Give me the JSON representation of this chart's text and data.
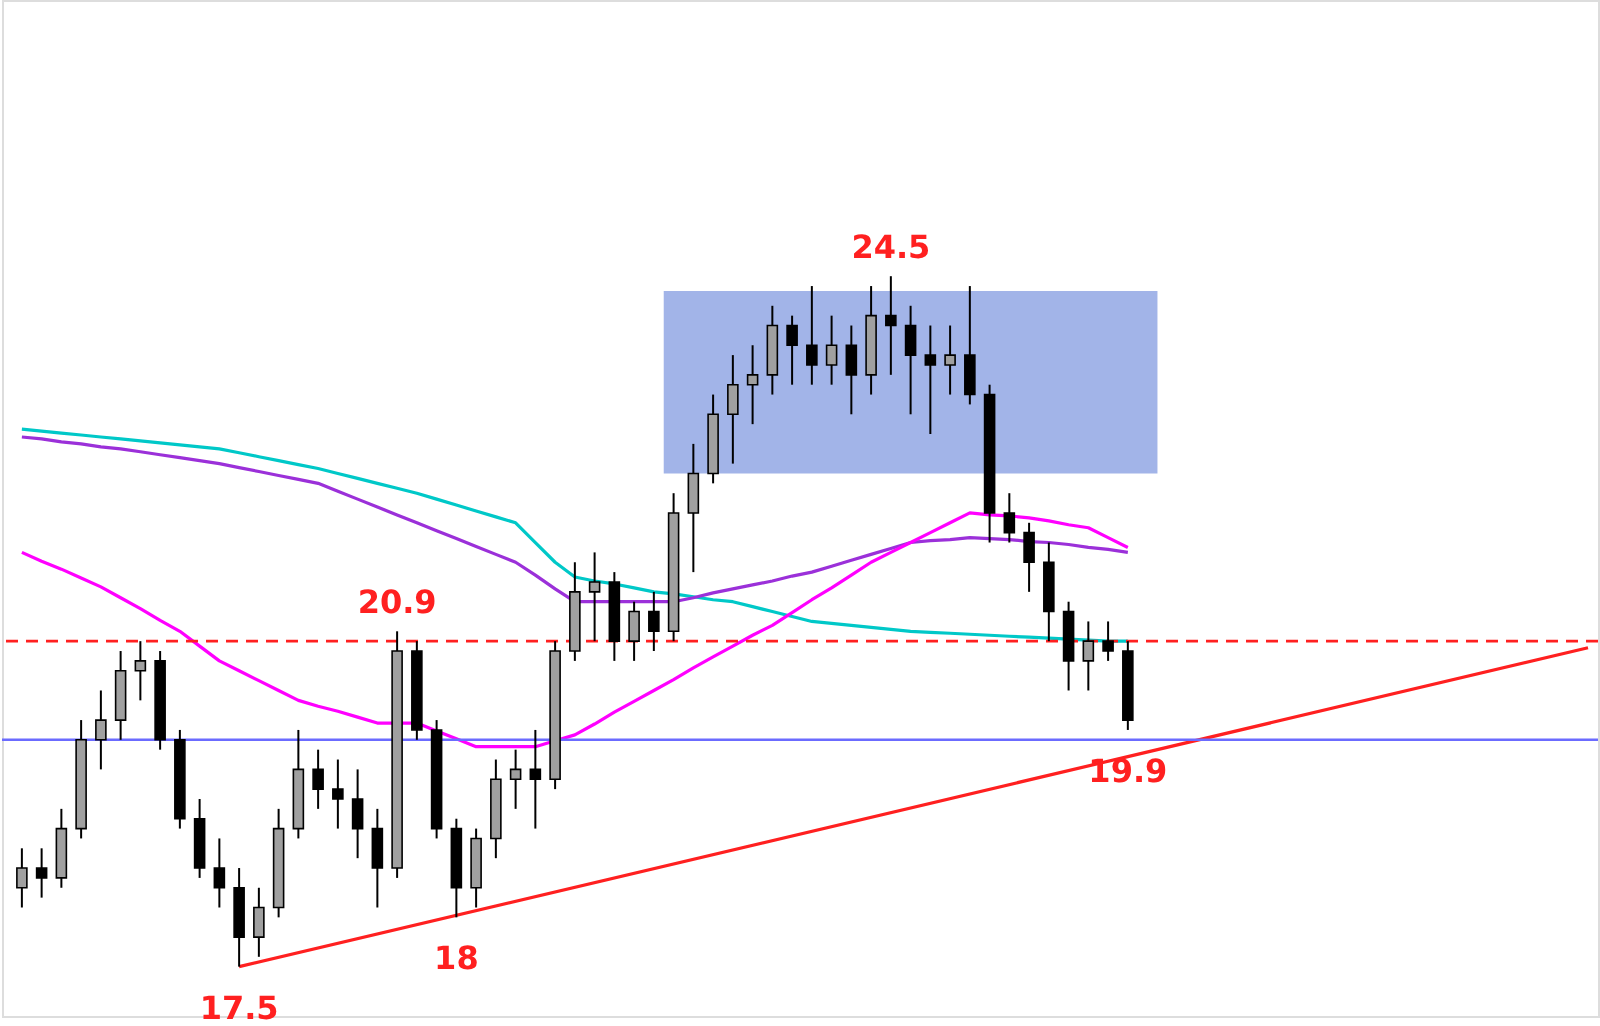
{
  "chart_data": {
    "type": "candlestick",
    "ylim": [
      17.0,
      27.3
    ],
    "categories": [
      null,
      null,
      null,
      null,
      null,
      null,
      null,
      null,
      null,
      null,
      null,
      null,
      null,
      null,
      null,
      null,
      null,
      null,
      null,
      null,
      null,
      null,
      null,
      null,
      null,
      null,
      null,
      null,
      null,
      null,
      null,
      null,
      null,
      null,
      null,
      null,
      null,
      null,
      null,
      null,
      null,
      null,
      null,
      null,
      null,
      null,
      null,
      null,
      null,
      null,
      null,
      null,
      null,
      null,
      null,
      null,
      null
    ],
    "series": [
      {
        "color": "#000000",
        "ohlc": [
          [
            18.3,
            18.7,
            18.1,
            18.5
          ],
          [
            18.5,
            18.7,
            18.2,
            18.4
          ],
          [
            18.4,
            19.1,
            18.3,
            18.9
          ],
          [
            18.9,
            20.0,
            18.8,
            19.8
          ],
          [
            19.8,
            20.3,
            19.5,
            20.0
          ],
          [
            20.0,
            20.7,
            19.8,
            20.5
          ],
          [
            20.5,
            20.8,
            20.2,
            20.6
          ],
          [
            20.6,
            20.7,
            19.7,
            19.8
          ],
          [
            19.8,
            19.9,
            18.9,
            19.0
          ],
          [
            19.0,
            19.2,
            18.4,
            18.5
          ],
          [
            18.5,
            18.8,
            18.1,
            18.3
          ],
          [
            18.3,
            18.5,
            17.5,
            17.8
          ],
          [
            17.8,
            18.3,
            17.6,
            18.1
          ],
          [
            18.1,
            19.1,
            18.0,
            18.9
          ],
          [
            18.9,
            19.9,
            18.8,
            19.5
          ],
          [
            19.5,
            19.7,
            19.1,
            19.3
          ],
          [
            19.3,
            19.6,
            18.9,
            19.2
          ],
          [
            19.2,
            19.5,
            18.6,
            18.9
          ],
          [
            18.9,
            19.1,
            18.1,
            18.5
          ],
          [
            18.5,
            20.9,
            18.4,
            20.7
          ],
          [
            20.7,
            20.8,
            19.8,
            19.9
          ],
          [
            19.9,
            20.0,
            18.8,
            18.9
          ],
          [
            18.9,
            19.0,
            18.0,
            18.3
          ],
          [
            18.3,
            18.9,
            18.1,
            18.8
          ],
          [
            18.8,
            19.6,
            18.6,
            19.4
          ],
          [
            19.4,
            19.7,
            19.1,
            19.5
          ],
          [
            19.5,
            19.9,
            18.9,
            19.4
          ],
          [
            19.4,
            20.8,
            19.3,
            20.7
          ],
          [
            20.7,
            21.6,
            20.6,
            21.3
          ],
          [
            21.3,
            21.7,
            20.8,
            21.4
          ],
          [
            21.4,
            21.5,
            20.6,
            20.8
          ],
          [
            20.8,
            21.2,
            20.6,
            21.1
          ],
          [
            21.1,
            21.3,
            20.7,
            20.9
          ],
          [
            20.9,
            22.3,
            20.8,
            22.1
          ],
          [
            22.1,
            22.8,
            21.5,
            22.5
          ],
          [
            22.5,
            23.3,
            22.4,
            23.1
          ],
          [
            23.1,
            23.7,
            22.6,
            23.4
          ],
          [
            23.4,
            23.8,
            23.0,
            23.5
          ],
          [
            23.5,
            24.2,
            23.3,
            24.0
          ],
          [
            24.0,
            24.1,
            23.4,
            23.8
          ],
          [
            23.8,
            24.4,
            23.4,
            23.6
          ],
          [
            23.6,
            24.1,
            23.4,
            23.8
          ],
          [
            23.8,
            24.0,
            23.1,
            23.5
          ],
          [
            23.5,
            24.4,
            23.3,
            24.1
          ],
          [
            24.1,
            24.5,
            23.5,
            24.0
          ],
          [
            24.0,
            24.2,
            23.1,
            23.7
          ],
          [
            23.7,
            24.0,
            22.9,
            23.6
          ],
          [
            23.6,
            24.0,
            23.3,
            23.7
          ],
          [
            23.7,
            24.4,
            23.2,
            23.3
          ],
          [
            23.3,
            23.4,
            21.8,
            22.1
          ],
          [
            22.1,
            22.3,
            21.8,
            21.9
          ],
          [
            21.9,
            22.0,
            21.3,
            21.6
          ],
          [
            21.6,
            21.8,
            20.8,
            21.1
          ],
          [
            21.1,
            21.2,
            20.3,
            20.6
          ],
          [
            20.6,
            21.0,
            20.3,
            20.8
          ],
          [
            20.8,
            21.0,
            20.6,
            20.7
          ],
          [
            20.7,
            20.8,
            19.9,
            20.0
          ]
        ]
      },
      {
        "type": "line",
        "color": "#00c8c8",
        "values": [
          22.95,
          22.93,
          22.91,
          22.89,
          22.87,
          22.85,
          22.83,
          22.81,
          22.79,
          22.77,
          22.75,
          22.71,
          22.67,
          22.63,
          22.59,
          22.55,
          22.5,
          22.45,
          22.4,
          22.35,
          22.3,
          22.24,
          22.18,
          22.12,
          22.06,
          22.0,
          21.8,
          21.6,
          21.45,
          21.41,
          21.38,
          21.34,
          21.3,
          21.28,
          21.25,
          21.22,
          21.2,
          21.15,
          21.1,
          21.05,
          21.0,
          20.98,
          20.96,
          20.94,
          20.92,
          20.9,
          20.89,
          20.88,
          20.87,
          20.86,
          20.85,
          20.84,
          20.83,
          20.82,
          20.81,
          20.8,
          20.8
        ]
      },
      {
        "type": "line",
        "color": "#9b30d9",
        "values": [
          22.87,
          22.85,
          22.82,
          22.8,
          22.77,
          22.75,
          22.72,
          22.69,
          22.66,
          22.63,
          22.6,
          22.56,
          22.52,
          22.48,
          22.44,
          22.4,
          22.32,
          22.24,
          22.16,
          22.08,
          22.0,
          21.92,
          21.84,
          21.76,
          21.68,
          21.6,
          21.47,
          21.33,
          21.2,
          21.2,
          21.2,
          21.2,
          21.2,
          21.2,
          21.24,
          21.29,
          21.33,
          21.37,
          21.41,
          21.46,
          21.5,
          21.56,
          21.62,
          21.68,
          21.74,
          21.8,
          21.82,
          21.83,
          21.85,
          21.84,
          21.83,
          21.81,
          21.8,
          21.78,
          21.75,
          21.73,
          21.7
        ]
      },
      {
        "type": "line",
        "color": "#ff00ff",
        "values": [
          21.7,
          21.61,
          21.53,
          21.44,
          21.35,
          21.24,
          21.13,
          21.01,
          20.9,
          20.75,
          20.6,
          20.5,
          20.4,
          20.3,
          20.2,
          20.14,
          20.09,
          20.03,
          19.97,
          19.97,
          19.97,
          19.89,
          19.81,
          19.73,
          19.73,
          19.73,
          19.73,
          19.79,
          19.85,
          19.96,
          20.08,
          20.19,
          20.3,
          20.41,
          20.53,
          20.64,
          20.75,
          20.86,
          20.96,
          21.09,
          21.22,
          21.34,
          21.47,
          21.6,
          21.7,
          21.8,
          21.9,
          22.0,
          22.1,
          22.08,
          22.07,
          22.05,
          22.02,
          21.98,
          21.95,
          21.85,
          21.75
        ]
      },
      {
        "type": "line",
        "color": "#ff2020",
        "values": [
          null,
          null,
          null,
          null,
          null,
          null,
          null,
          null,
          null,
          null,
          null,
          17.5,
          null,
          null,
          null,
          null,
          null,
          null,
          null,
          null,
          null,
          null,
          null,
          null,
          null,
          null,
          null,
          null,
          null,
          null,
          null,
          null,
          null,
          null,
          null,
          null,
          null,
          null,
          null,
          null,
          null,
          null,
          null,
          null,
          null,
          null,
          null,
          null,
          null,
          null,
          null,
          null,
          null,
          null,
          null,
          null,
          19.63
        ]
      }
    ],
    "ref_lines": [
      {
        "axis": "y",
        "value": 19.8,
        "color": "#6b6bff",
        "line_style": "solid"
      },
      {
        "axis": "y",
        "value": 20.8,
        "color": "#ff2020",
        "line_style": "dashed"
      }
    ],
    "bands": [
      {
        "axis": "y",
        "from": 22.5,
        "to": 24.35,
        "color": "#a2b4e8"
      }
    ],
    "annotations": [
      {
        "text": "24.5",
        "y": 24.5
      },
      {
        "text": "20.9",
        "y": 20.9
      },
      {
        "text": "18",
        "y": 18.0
      },
      {
        "text": "17.5",
        "y": 17.5
      },
      {
        "text": "19.9",
        "y": 19.9
      }
    ]
  }
}
